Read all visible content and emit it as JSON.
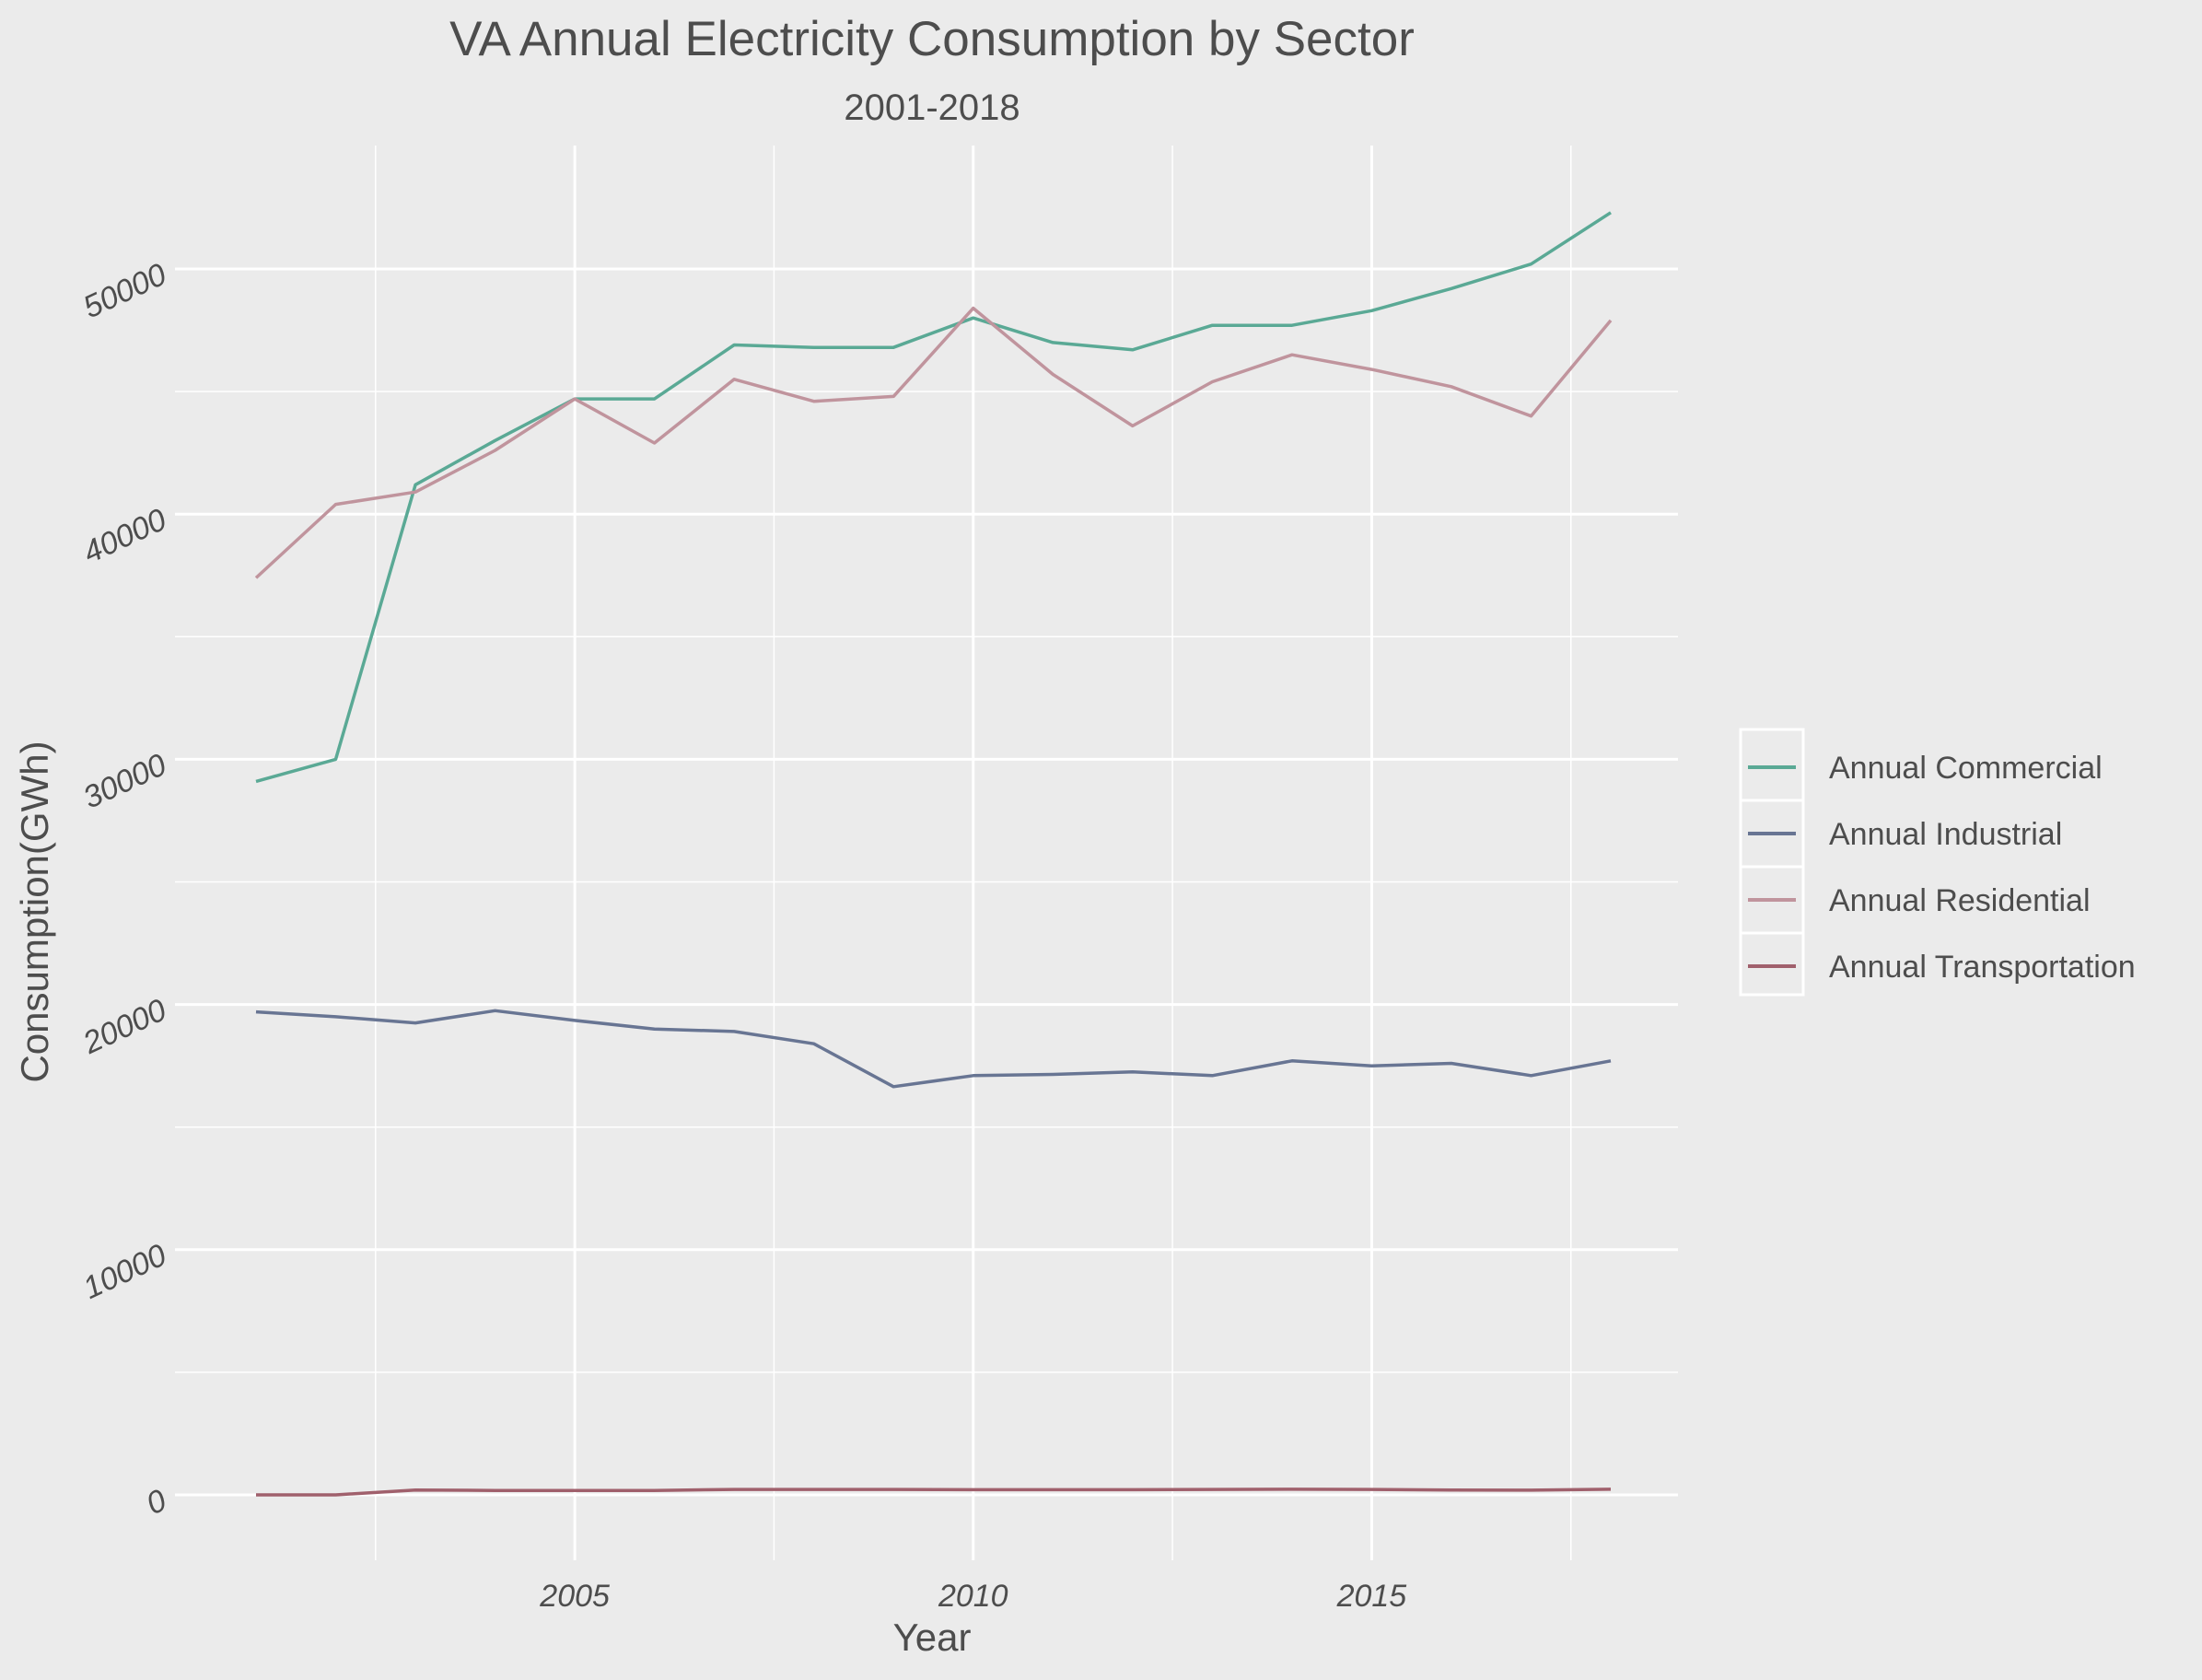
{
  "chart_data": {
    "type": "line",
    "title": "VA Annual Electricity Consumption by Sector",
    "subtitle": "2001-2018",
    "xlabel": "Year",
    "ylabel": "Consumption(GWh)",
    "x": [
      2001,
      2002,
      2003,
      2004,
      2005,
      2006,
      2007,
      2008,
      2009,
      2010,
      2011,
      2012,
      2013,
      2014,
      2015,
      2016,
      2017,
      2018
    ],
    "xlim": [
      2000.2,
      2018.8
    ],
    "ylim": [
      -1800,
      55000
    ],
    "xticks": [
      2005,
      2010,
      2015
    ],
    "yticks": [
      0,
      10000,
      20000,
      30000,
      40000,
      50000
    ],
    "grid": true,
    "legend_position": "right",
    "series": [
      {
        "name": "Annual Commercial",
        "color": "#5aa995",
        "values": [
          29100,
          30000,
          41200,
          43000,
          44700,
          44700,
          46900,
          46800,
          46800,
          48000,
          47000,
          46700,
          47700,
          47700,
          48300,
          49200,
          50200,
          52300
        ]
      },
      {
        "name": "Annual Industrial",
        "color": "#687593",
        "values": [
          19700,
          19500,
          19250,
          19750,
          19350,
          19000,
          18900,
          18400,
          16650,
          17100,
          17150,
          17250,
          17100,
          17700,
          17500,
          17600,
          17100,
          17700
        ]
      },
      {
        "name": "Annual Residential",
        "color": "#c0949d",
        "values": [
          37400,
          40400,
          40900,
          42600,
          44700,
          42900,
          45500,
          44600,
          44800,
          48400,
          45700,
          43600,
          45400,
          46500,
          45900,
          45200,
          44000,
          47900
        ]
      },
      {
        "name": "Annual Transportation",
        "color": "#a0606c",
        "values": [
          0,
          0,
          200,
          180,
          180,
          180,
          220,
          220,
          220,
          210,
          210,
          210,
          220,
          230,
          220,
          200,
          190,
          230
        ]
      }
    ]
  }
}
